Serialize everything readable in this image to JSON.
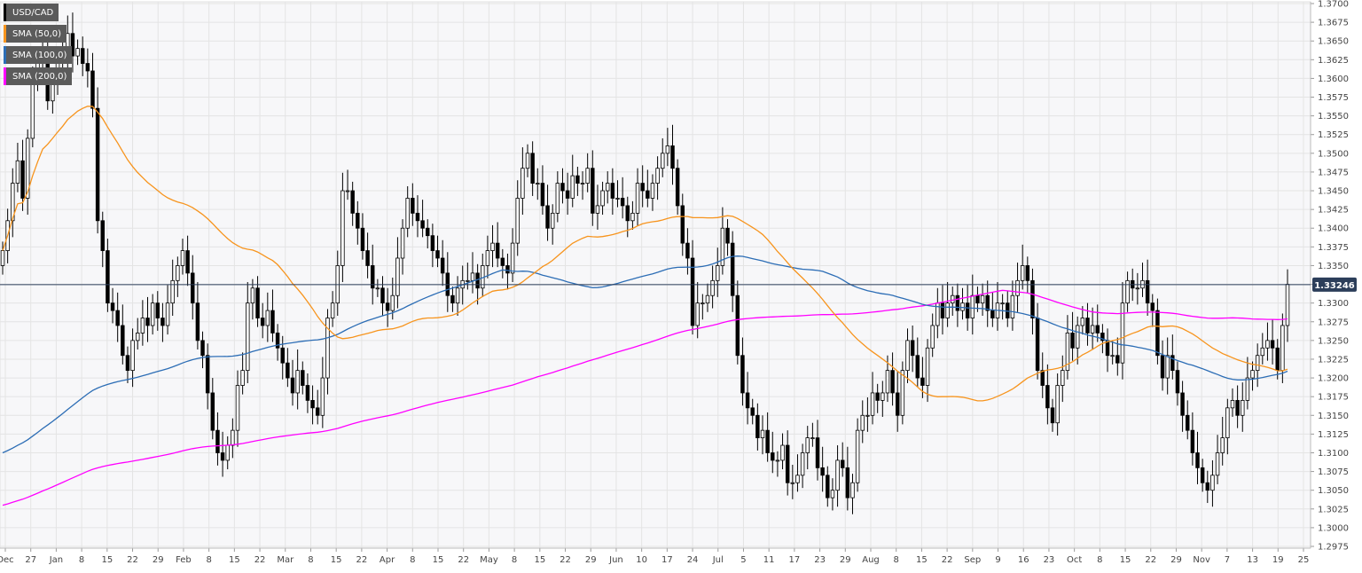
{
  "chart_data": {
    "type": "line",
    "subtype": "candlestick with moving averages",
    "symbol": "USD/CAD",
    "last_price": "1.33246",
    "ylim": [
      1.2975,
      1.37
    ],
    "y_ticks": [
      "1.2975",
      "1.3000",
      "1.3025",
      "1.3050",
      "1.3075",
      "1.3100",
      "1.3125",
      "1.3150",
      "1.3175",
      "1.3200",
      "1.3225",
      "1.3250",
      "1.3275",
      "1.3300",
      "1.3325",
      "1.3350",
      "1.3375",
      "1.3400",
      "1.3425",
      "1.3450",
      "1.3475",
      "1.3500",
      "1.3525",
      "1.3550",
      "1.3575",
      "1.3600",
      "1.3625",
      "1.3650",
      "1.3675",
      "1.3700"
    ],
    "x_ticks": [
      "Dec",
      "27",
      "Jan",
      "8",
      "15",
      "22",
      "29",
      "Feb",
      "8",
      "15",
      "22",
      "Mar",
      "8",
      "15",
      "22",
      "Apr",
      "8",
      "15",
      "22",
      "May",
      "8",
      "15",
      "22",
      "29",
      "Jun",
      "10",
      "17",
      "24",
      "Jul",
      "5",
      "11",
      "17",
      "23",
      "29",
      "Aug",
      "8",
      "15",
      "22",
      "Sep",
      "9",
      "16",
      "23",
      "Oct",
      "8",
      "15",
      "22",
      "29",
      "Nov",
      "7",
      "13",
      "19",
      "25"
    ],
    "grid": true,
    "legend_position": "top-left",
    "series": [
      {
        "name": "USD/CAD",
        "color": "#000000",
        "closes": [
          1.337,
          1.341,
          1.346,
          1.349,
          1.344,
          1.352,
          1.36,
          1.362,
          1.364,
          1.357,
          1.36,
          1.362,
          1.363,
          1.366,
          1.363,
          1.364,
          1.362,
          1.361,
          1.356,
          1.341,
          1.337,
          1.33,
          1.329,
          1.327,
          1.323,
          1.321,
          1.325,
          1.326,
          1.328,
          1.327,
          1.33,
          1.328,
          1.327,
          1.33,
          1.333,
          1.335,
          1.337,
          1.334,
          1.33,
          1.325,
          1.323,
          1.318,
          1.313,
          1.31,
          1.309,
          1.311,
          1.313,
          1.319,
          1.321,
          1.33,
          1.332,
          1.328,
          1.327,
          1.329,
          1.326,
          1.324,
          1.322,
          1.32,
          1.318,
          1.321,
          1.319,
          1.317,
          1.316,
          1.315,
          1.32,
          1.328,
          1.33,
          1.335,
          1.345,
          1.345,
          1.342,
          1.34,
          1.337,
          1.335,
          1.332,
          1.332,
          1.33,
          1.329,
          1.331,
          1.336,
          1.34,
          1.344,
          1.342,
          1.341,
          1.34,
          1.339,
          1.337,
          1.336,
          1.334,
          1.331,
          1.33,
          1.332,
          1.333,
          1.333,
          1.334,
          1.332,
          1.335,
          1.337,
          1.338,
          1.336,
          1.335,
          1.334,
          1.338,
          1.344,
          1.348,
          1.35,
          1.346,
          1.346,
          1.343,
          1.34,
          1.342,
          1.346,
          1.345,
          1.344,
          1.347,
          1.346,
          1.346,
          1.348,
          1.342,
          1.343,
          1.345,
          1.346,
          1.344,
          1.344,
          1.343,
          1.341,
          1.342,
          1.346,
          1.345,
          1.344,
          1.346,
          1.348,
          1.35,
          1.351,
          1.348,
          1.343,
          1.338,
          1.336,
          1.327,
          1.33,
          1.33,
          1.331,
          1.333,
          1.335,
          1.34,
          1.338,
          1.331,
          1.323,
          1.318,
          1.316,
          1.315,
          1.312,
          1.313,
          1.31,
          1.309,
          1.309,
          1.311,
          1.306,
          1.306,
          1.307,
          1.31,
          1.312,
          1.312,
          1.308,
          1.307,
          1.304,
          1.305,
          1.309,
          1.308,
          1.304,
          1.306,
          1.313,
          1.315,
          1.315,
          1.318,
          1.317,
          1.318,
          1.321,
          1.318,
          1.315,
          1.321,
          1.325,
          1.323,
          1.32,
          1.319,
          1.324,
          1.327,
          1.33,
          1.328,
          1.33,
          1.331,
          1.329,
          1.33,
          1.328,
          1.331,
          1.33,
          1.331,
          1.329,
          1.328,
          1.33,
          1.33,
          1.328,
          1.331,
          1.333,
          1.335,
          1.333,
          1.328,
          1.321,
          1.319,
          1.316,
          1.314,
          1.319,
          1.321,
          1.326,
          1.324,
          1.327,
          1.328,
          1.326,
          1.327,
          1.326,
          1.325,
          1.323,
          1.323,
          1.322,
          1.33,
          1.333,
          1.332,
          1.332,
          1.333,
          1.33,
          1.329,
          1.323,
          1.32,
          1.323,
          1.321,
          1.318,
          1.315,
          1.313,
          1.31,
          1.308,
          1.306,
          1.305,
          1.307,
          1.31,
          1.312,
          1.316,
          1.317,
          1.315,
          1.317,
          1.32,
          1.321,
          1.323,
          1.324,
          1.325,
          1.324,
          1.321,
          1.327,
          1.3325
        ],
        "note": "daily closes"
      },
      {
        "name": "SMA (50,0)",
        "color": "#f7941d"
      },
      {
        "name": "SMA (100,0)",
        "color": "#2c6db5"
      },
      {
        "name": "SMA (200,0)",
        "color": "#ff00ff"
      }
    ]
  },
  "legend": {
    "items": [
      {
        "label": "USD/CAD",
        "color": "#000000"
      },
      {
        "label": "SMA (50,0)",
        "color": "#f7941d"
      },
      {
        "label": "SMA (100,0)",
        "color": "#2c6db5"
      },
      {
        "label": "SMA (200,0)",
        "color": "#ff00ff"
      }
    ]
  },
  "price_badge": {
    "label": "1.33246",
    "color": "#2c3e5a"
  }
}
